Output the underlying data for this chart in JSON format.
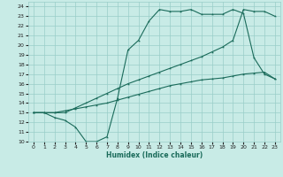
{
  "xlabel": "Humidex (Indice chaleur)",
  "background_color": "#c8ebe6",
  "grid_color": "#9acec8",
  "line_color": "#1a6b5a",
  "xlim": [
    -0.5,
    23.5
  ],
  "ylim": [
    10,
    24.5
  ],
  "xticks": [
    0,
    1,
    2,
    3,
    4,
    5,
    6,
    7,
    8,
    9,
    10,
    11,
    12,
    13,
    14,
    15,
    16,
    17,
    18,
    19,
    20,
    21,
    22,
    23
  ],
  "yticks": [
    10,
    11,
    12,
    13,
    14,
    15,
    16,
    17,
    18,
    19,
    20,
    21,
    22,
    23,
    24
  ],
  "line1_x": [
    0,
    1,
    2,
    3,
    4,
    5,
    6,
    7,
    8,
    9,
    10,
    11,
    12,
    13,
    14,
    15,
    16,
    17,
    18,
    19,
    20,
    21,
    22,
    23
  ],
  "line1_y": [
    13.0,
    13.0,
    13.0,
    13.2,
    13.4,
    13.6,
    13.8,
    14.0,
    14.3,
    14.6,
    14.9,
    15.2,
    15.5,
    15.8,
    16.0,
    16.2,
    16.4,
    16.5,
    16.6,
    16.8,
    17.0,
    17.1,
    17.2,
    16.5
  ],
  "line2_x": [
    0,
    1,
    2,
    3,
    4,
    5,
    6,
    7,
    8,
    9,
    10,
    11,
    12,
    13,
    14,
    15,
    16,
    17,
    18,
    19,
    20,
    21,
    22,
    23
  ],
  "line2_y": [
    13.0,
    13.0,
    12.5,
    12.2,
    11.5,
    10.0,
    10.0,
    10.5,
    14.5,
    19.5,
    20.5,
    22.5,
    23.7,
    23.5,
    23.5,
    23.7,
    23.2,
    23.2,
    23.2,
    23.7,
    23.3,
    18.7,
    17.0,
    16.5
  ],
  "line3_x": [
    0,
    1,
    2,
    3,
    4,
    5,
    6,
    7,
    8,
    9,
    10,
    11,
    12,
    13,
    14,
    15,
    16,
    17,
    18,
    19,
    20,
    21,
    22,
    23
  ],
  "line3_y": [
    13.0,
    13.0,
    13.0,
    13.0,
    13.5,
    14.0,
    14.5,
    15.0,
    15.5,
    16.0,
    16.4,
    16.8,
    17.2,
    17.6,
    18.0,
    18.4,
    18.8,
    19.3,
    19.8,
    20.5,
    23.7,
    23.5,
    23.5,
    23.0
  ]
}
